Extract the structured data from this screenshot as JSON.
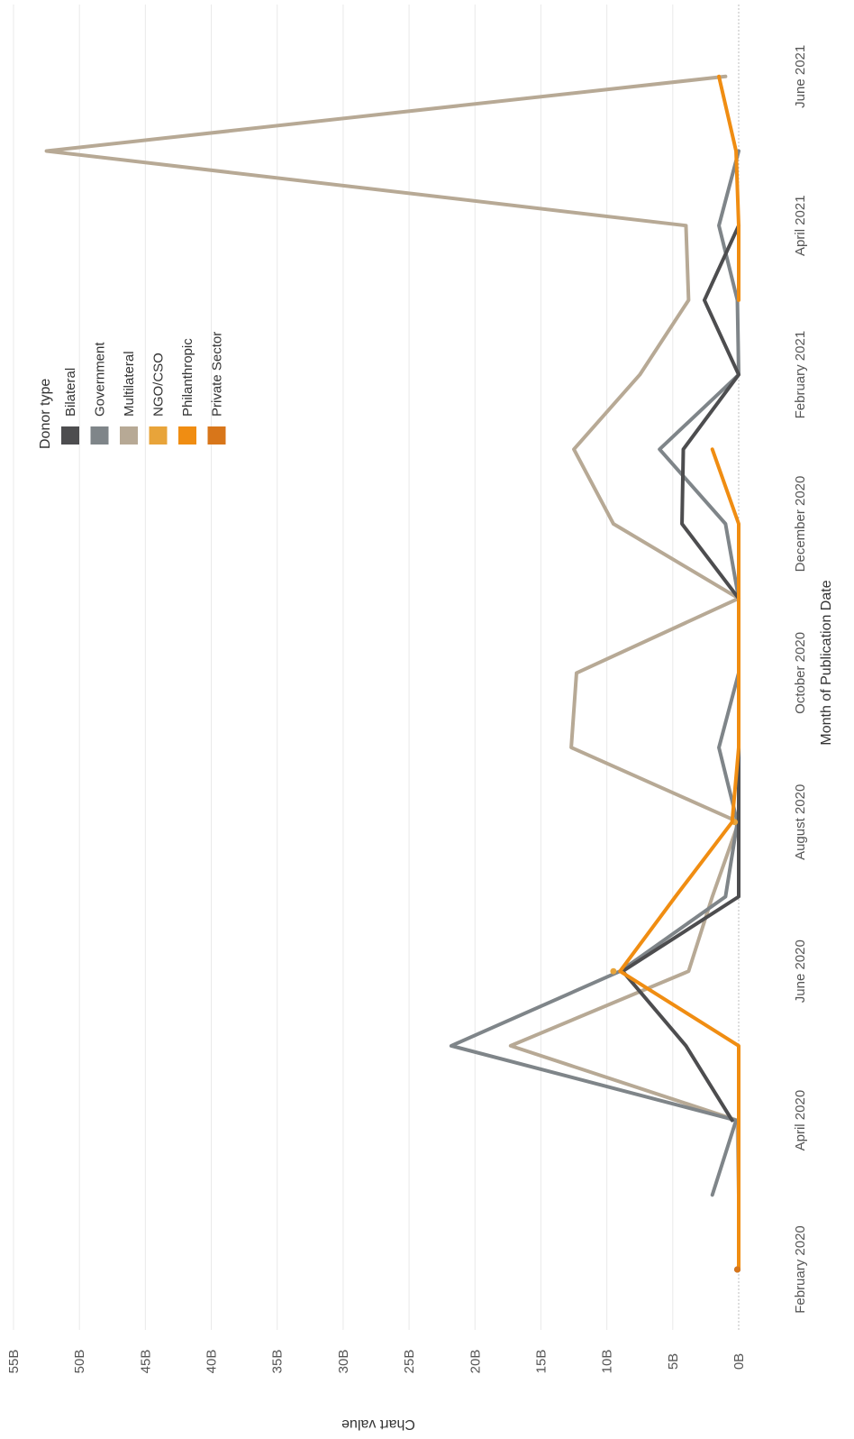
{
  "chart_data": {
    "type": "line",
    "orientation": "rotated-90-cw",
    "xlabel": "Month of Publication Date",
    "ylabel": "Chart value",
    "x_tick_labels": [
      "February 2020",
      "April 2020",
      "June 2020",
      "August 2020",
      "October 2020",
      "December 2020",
      "February 2021",
      "April 2021",
      "June 2021"
    ],
    "y_tick_labels": [
      "0B",
      "5B",
      "10B",
      "15B",
      "20B",
      "25B",
      "30B",
      "35B",
      "40B",
      "45B",
      "50B",
      "55B"
    ],
    "ylim": [
      0,
      55
    ],
    "grid": true,
    "legend": {
      "title": "Donor type",
      "placement": "top-right"
    },
    "months": [
      "2020-02",
      "2020-03",
      "2020-04",
      "2020-05",
      "2020-06",
      "2020-07",
      "2020-08",
      "2020-09",
      "2020-10",
      "2020-11",
      "2020-12",
      "2021-01",
      "2021-02",
      "2021-03",
      "2021-04",
      "2021-05",
      "2021-06"
    ],
    "series": [
      {
        "name": "Bilateral",
        "color": "#4d4d4f",
        "values": [
          0.1,
          null,
          0.5,
          4.0,
          8.8,
          0,
          0,
          0,
          0,
          0,
          4.3,
          4.2,
          0,
          2.6,
          0,
          null,
          null
        ]
      },
      {
        "name": "Government",
        "color": "#7f8589",
        "values": [
          null,
          2.0,
          0.2,
          21.8,
          9.0,
          1.0,
          0.1,
          1.5,
          0,
          0,
          1.0,
          6.0,
          0,
          0.1,
          1.5,
          0,
          null
        ]
      },
      {
        "name": "Multilateral",
        "color": "#b7a995",
        "values": [
          null,
          0,
          0.1,
          17.3,
          3.8,
          2.0,
          0,
          12.7,
          12.3,
          0,
          9.5,
          12.5,
          7.5,
          3.8,
          4.0,
          52.5,
          1.0
        ]
      },
      {
        "name": "NGO/CSO",
        "color": "#e8a43a",
        "values": [
          null,
          null,
          null,
          null,
          9.5,
          null,
          0.3,
          null,
          null,
          null,
          null,
          null,
          null,
          null,
          null,
          null,
          null
        ]
      },
      {
        "name": "Philanthropic",
        "color": "#f08d12",
        "values": [
          0,
          0,
          0,
          0,
          9.0,
          4.8,
          0.5,
          0,
          0,
          0,
          0,
          2.0,
          null,
          0,
          0,
          0.2,
          1.5
        ]
      },
      {
        "name": "Private Sector",
        "color": "#d8761a",
        "values": [
          0.1,
          null,
          null,
          null,
          null,
          null,
          null,
          null,
          null,
          null,
          null,
          null,
          null,
          null,
          null,
          null,
          null
        ]
      }
    ]
  }
}
